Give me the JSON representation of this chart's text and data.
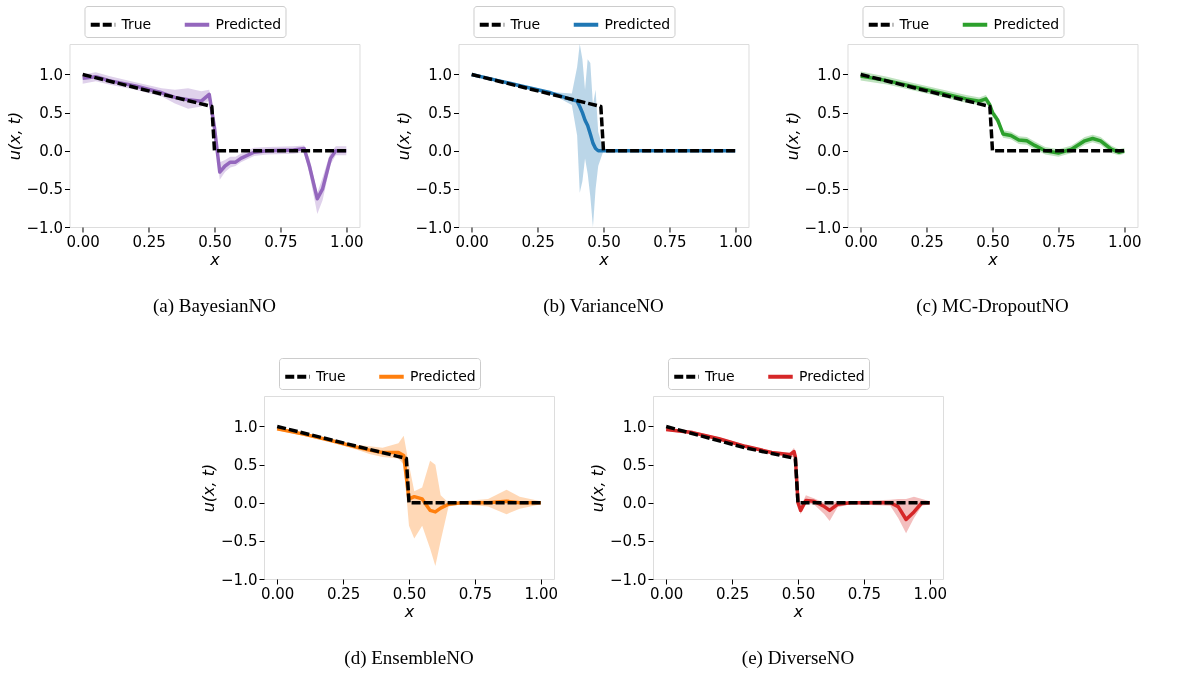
{
  "chart_data": [
    {
      "type": "line",
      "title": "(a) BayesianNO",
      "xlabel": "x",
      "ylabel": "u(x, t)",
      "xlim": [
        -0.05,
        1.05
      ],
      "ylim": [
        -1.0,
        1.4
      ],
      "legend": "top",
      "grid": false,
      "xticks": [
        {
          "value": 0,
          "label": "0.00"
        },
        {
          "value": 0.25,
          "label": "0.25"
        },
        {
          "value": 0.5,
          "label": "0.50"
        },
        {
          "value": 0.75,
          "label": "0.75"
        },
        {
          "value": 1,
          "label": "1.00"
        }
      ],
      "yticks": [
        {
          "value": -1,
          "label": "−1.0"
        },
        {
          "value": -0.5,
          "label": "−0.5"
        },
        {
          "value": 0,
          "label": "0.0"
        },
        {
          "value": 0.5,
          "label": "0.5"
        },
        {
          "value": 1,
          "label": "1.0"
        }
      ],
      "series": [
        {
          "name": "True",
          "color": "#000000",
          "line_style": "dashed",
          "x": [
            0,
            0.49,
            0.5,
            1.0
          ],
          "values": [
            1.0,
            0.58,
            0.0,
            0.0
          ]
        },
        {
          "name": "Predicted",
          "color": "#9467bd",
          "line_style": "solid",
          "x": [
            0,
            0.05,
            0.1,
            0.2,
            0.3,
            0.35,
            0.4,
            0.45,
            0.48,
            0.5,
            0.52,
            0.54,
            0.56,
            0.58,
            0.6,
            0.65,
            0.7,
            0.8,
            0.84,
            0.86,
            0.89,
            0.91,
            0.94,
            0.96,
            1.0
          ],
          "values": [
            0.95,
            0.97,
            0.92,
            0.85,
            0.76,
            0.7,
            0.67,
            0.65,
            0.74,
            0.3,
            -0.28,
            -0.2,
            -0.15,
            -0.15,
            -0.1,
            -0.02,
            0.0,
            0.01,
            0.03,
            -0.2,
            -0.63,
            -0.5,
            -0.1,
            0.0,
            0.0
          ],
          "lower": [
            0.88,
            0.91,
            0.87,
            0.8,
            0.71,
            0.62,
            0.55,
            0.58,
            0.66,
            0.22,
            -0.38,
            -0.28,
            -0.22,
            -0.2,
            -0.15,
            -0.07,
            -0.05,
            -0.04,
            -0.02,
            -0.3,
            -0.83,
            -0.65,
            -0.18,
            -0.06,
            -0.06
          ],
          "upper": [
            1.0,
            1.03,
            0.98,
            0.9,
            0.82,
            0.8,
            0.82,
            0.78,
            0.8,
            0.38,
            -0.15,
            -0.12,
            -0.08,
            -0.08,
            -0.04,
            0.04,
            0.05,
            0.06,
            0.07,
            -0.1,
            -0.55,
            -0.35,
            -0.02,
            0.06,
            0.06
          ]
        }
      ]
    },
    {
      "type": "line",
      "title": "(b) VarianceNO",
      "xlabel": "x",
      "ylabel": "u(x, t)",
      "xlim": [
        -0.05,
        1.05
      ],
      "ylim": [
        -1.0,
        1.4
      ],
      "legend": "top",
      "grid": false,
      "xticks": [
        {
          "value": 0,
          "label": "0.00"
        },
        {
          "value": 0.25,
          "label": "0.25"
        },
        {
          "value": 0.5,
          "label": "0.50"
        },
        {
          "value": 0.75,
          "label": "0.75"
        },
        {
          "value": 1,
          "label": "1.00"
        }
      ],
      "yticks": [
        {
          "value": -1,
          "label": "−1.0"
        },
        {
          "value": -0.5,
          "label": "−0.5"
        },
        {
          "value": 0,
          "label": "0.0"
        },
        {
          "value": 0.5,
          "label": "0.5"
        },
        {
          "value": 1,
          "label": "1.0"
        }
      ],
      "series": [
        {
          "name": "True",
          "color": "#000000",
          "line_style": "dashed",
          "x": [
            0,
            0.49,
            0.5,
            1.0
          ],
          "values": [
            1.0,
            0.58,
            0.0,
            0.0
          ]
        },
        {
          "name": "Predicted",
          "color": "#1f77b4",
          "line_style": "solid",
          "x": [
            0,
            0.1,
            0.2,
            0.3,
            0.38,
            0.4,
            0.41,
            0.42,
            0.43,
            0.44,
            0.45,
            0.46,
            0.47,
            0.48,
            0.5,
            0.6,
            0.75,
            0.9,
            1.0
          ],
          "values": [
            1.0,
            0.92,
            0.84,
            0.76,
            0.67,
            0.65,
            0.58,
            0.5,
            0.4,
            0.33,
            0.22,
            0.1,
            0.03,
            0.0,
            0.0,
            0.0,
            0.0,
            0.0,
            0.0
          ],
          "lower": [
            0.99,
            0.91,
            0.83,
            0.75,
            0.6,
            0.2,
            -0.55,
            -0.4,
            -0.1,
            -0.3,
            -0.6,
            -1.0,
            -0.5,
            -0.2,
            0.0,
            0.0,
            0.0,
            0.0,
            0.0
          ],
          "upper": [
            1.01,
            0.93,
            0.85,
            0.77,
            0.75,
            1.1,
            1.4,
            1.2,
            0.8,
            1.2,
            1.15,
            0.6,
            0.8,
            0.25,
            0.0,
            0.0,
            0.0,
            0.0,
            0.0
          ]
        }
      ]
    },
    {
      "type": "line",
      "title": "(c) MC-DropoutNO",
      "xlabel": "x",
      "ylabel": "u(x, t)",
      "xlim": [
        -0.05,
        1.05
      ],
      "ylim": [
        -1.0,
        1.4
      ],
      "legend": "top",
      "grid": false,
      "xticks": [
        {
          "value": 0,
          "label": "0.00"
        },
        {
          "value": 0.25,
          "label": "0.25"
        },
        {
          "value": 0.5,
          "label": "0.50"
        },
        {
          "value": 0.75,
          "label": "0.75"
        },
        {
          "value": 1,
          "label": "1.00"
        }
      ],
      "yticks": [
        {
          "value": -1,
          "label": "−1.0"
        },
        {
          "value": -0.5,
          "label": "−0.5"
        },
        {
          "value": 0,
          "label": "0.0"
        },
        {
          "value": 0.5,
          "label": "0.5"
        },
        {
          "value": 1,
          "label": "1.0"
        }
      ],
      "series": [
        {
          "name": "True",
          "color": "#000000",
          "line_style": "dashed",
          "x": [
            0,
            0.49,
            0.5,
            1.0
          ],
          "values": [
            1.0,
            0.58,
            0.0,
            0.0
          ]
        },
        {
          "name": "Predicted",
          "color": "#2ca02c",
          "line_style": "solid",
          "x": [
            0,
            0.1,
            0.2,
            0.3,
            0.4,
            0.45,
            0.475,
            0.49,
            0.5,
            0.52,
            0.54,
            0.57,
            0.6,
            0.63,
            0.66,
            0.7,
            0.75,
            0.8,
            0.85,
            0.88,
            0.91,
            0.95,
            0.98,
            1.0
          ],
          "values": [
            0.98,
            0.92,
            0.84,
            0.76,
            0.68,
            0.65,
            0.68,
            0.6,
            0.5,
            0.4,
            0.22,
            0.2,
            0.14,
            0.13,
            0.07,
            0.0,
            -0.03,
            0.02,
            0.13,
            0.16,
            0.13,
            0.02,
            -0.02,
            0.0
          ],
          "lower": [
            0.92,
            0.87,
            0.79,
            0.71,
            0.63,
            0.6,
            0.63,
            0.55,
            0.45,
            0.35,
            0.17,
            0.15,
            0.09,
            0.08,
            0.02,
            -0.05,
            -0.08,
            -0.03,
            0.08,
            0.11,
            0.08,
            -0.03,
            -0.06,
            -0.04
          ],
          "upper": [
            1.04,
            0.97,
            0.89,
            0.81,
            0.73,
            0.7,
            0.73,
            0.65,
            0.55,
            0.45,
            0.27,
            0.25,
            0.19,
            0.18,
            0.12,
            0.05,
            0.02,
            0.07,
            0.18,
            0.21,
            0.18,
            0.07,
            0.02,
            0.04
          ]
        }
      ]
    },
    {
      "type": "line",
      "title": "(d) EnsembleNO",
      "xlabel": "x",
      "ylabel": "u(x, t)",
      "xlim": [
        -0.05,
        1.05
      ],
      "ylim": [
        -1.0,
        1.4
      ],
      "legend": "top",
      "grid": false,
      "xticks": [
        {
          "value": 0,
          "label": "0.00"
        },
        {
          "value": 0.25,
          "label": "0.25"
        },
        {
          "value": 0.5,
          "label": "0.50"
        },
        {
          "value": 0.75,
          "label": "0.75"
        },
        {
          "value": 1,
          "label": "1.00"
        }
      ],
      "yticks": [
        {
          "value": -1,
          "label": "−1.0"
        },
        {
          "value": -0.5,
          "label": "−0.5"
        },
        {
          "value": 0,
          "label": "0.0"
        },
        {
          "value": 0.5,
          "label": "0.5"
        },
        {
          "value": 1,
          "label": "1.0"
        }
      ],
      "series": [
        {
          "name": "True",
          "color": "#000000",
          "line_style": "dashed",
          "x": [
            0,
            0.49,
            0.5,
            1.0
          ],
          "values": [
            1.0,
            0.58,
            0.0,
            0.0
          ]
        },
        {
          "name": "Predicted",
          "color": "#ff7f0e",
          "line_style": "solid",
          "x": [
            0,
            0.1,
            0.2,
            0.3,
            0.35,
            0.4,
            0.46,
            0.48,
            0.5,
            0.52,
            0.55,
            0.58,
            0.6,
            0.62,
            0.65,
            0.7,
            0.8,
            0.87,
            0.92,
            1.0
          ],
          "values": [
            0.97,
            0.9,
            0.82,
            0.73,
            0.69,
            0.66,
            0.66,
            0.62,
            0.05,
            0.08,
            0.05,
            -0.1,
            -0.12,
            -0.07,
            -0.02,
            0.0,
            0.0,
            0.02,
            0.0,
            0.0
          ],
          "lower": [
            0.95,
            0.88,
            0.8,
            0.7,
            0.64,
            0.6,
            0.58,
            0.5,
            -0.3,
            -0.47,
            -0.3,
            -0.6,
            -0.83,
            -0.5,
            -0.05,
            -0.02,
            -0.05,
            -0.15,
            -0.08,
            -0.02
          ],
          "upper": [
            0.99,
            0.92,
            0.84,
            0.76,
            0.74,
            0.72,
            0.78,
            0.88,
            0.5,
            0.15,
            0.2,
            0.55,
            0.5,
            0.1,
            0.0,
            0.02,
            0.05,
            0.17,
            0.08,
            0.02
          ]
        }
      ]
    },
    {
      "type": "line",
      "title": "(e) DiverseNO",
      "xlabel": "x",
      "ylabel": "u(x, t)",
      "xlim": [
        -0.05,
        1.05
      ],
      "ylim": [
        -1.0,
        1.4
      ],
      "legend": "top",
      "grid": false,
      "xticks": [
        {
          "value": 0,
          "label": "0.00"
        },
        {
          "value": 0.25,
          "label": "0.25"
        },
        {
          "value": 0.5,
          "label": "0.50"
        },
        {
          "value": 0.75,
          "label": "0.75"
        },
        {
          "value": 1,
          "label": "1.00"
        }
      ],
      "yticks": [
        {
          "value": -1,
          "label": "−1.0"
        },
        {
          "value": -0.5,
          "label": "−0.5"
        },
        {
          "value": 0,
          "label": "0.0"
        },
        {
          "value": 0.5,
          "label": "0.5"
        },
        {
          "value": 1,
          "label": "1.0"
        }
      ],
      "series": [
        {
          "name": "True",
          "color": "#000000",
          "line_style": "dashed",
          "x": [
            0,
            0.3,
            0.49,
            0.5,
            1.0
          ],
          "values": [
            1.0,
            0.72,
            0.58,
            0.0,
            0.0
          ]
        },
        {
          "name": "Predicted",
          "color": "#d62728",
          "line_style": "solid",
          "x": [
            0,
            0.1,
            0.2,
            0.3,
            0.4,
            0.47,
            0.485,
            0.49,
            0.5,
            0.51,
            0.53,
            0.56,
            0.6,
            0.62,
            0.65,
            0.7,
            0.85,
            0.88,
            0.91,
            0.94,
            0.97,
            1.0
          ],
          "values": [
            0.96,
            0.92,
            0.84,
            0.74,
            0.66,
            0.63,
            0.67,
            0.6,
            0.0,
            -0.1,
            0.03,
            0.02,
            -0.05,
            -0.1,
            -0.02,
            0.0,
            0.0,
            -0.05,
            -0.22,
            -0.12,
            0.0,
            0.0
          ],
          "lower": [
            0.94,
            0.9,
            0.82,
            0.72,
            0.64,
            0.6,
            0.6,
            0.55,
            -0.05,
            -0.15,
            -0.02,
            -0.02,
            -0.15,
            -0.24,
            -0.06,
            -0.02,
            -0.04,
            -0.2,
            -0.4,
            -0.2,
            -0.04,
            -0.02
          ],
          "upper": [
            0.98,
            0.94,
            0.86,
            0.76,
            0.68,
            0.66,
            0.72,
            0.65,
            0.05,
            -0.05,
            0.1,
            0.06,
            0.0,
            0.0,
            0.02,
            0.02,
            0.04,
            0.05,
            0.05,
            0.08,
            0.05,
            0.02
          ]
        }
      ]
    }
  ]
}
